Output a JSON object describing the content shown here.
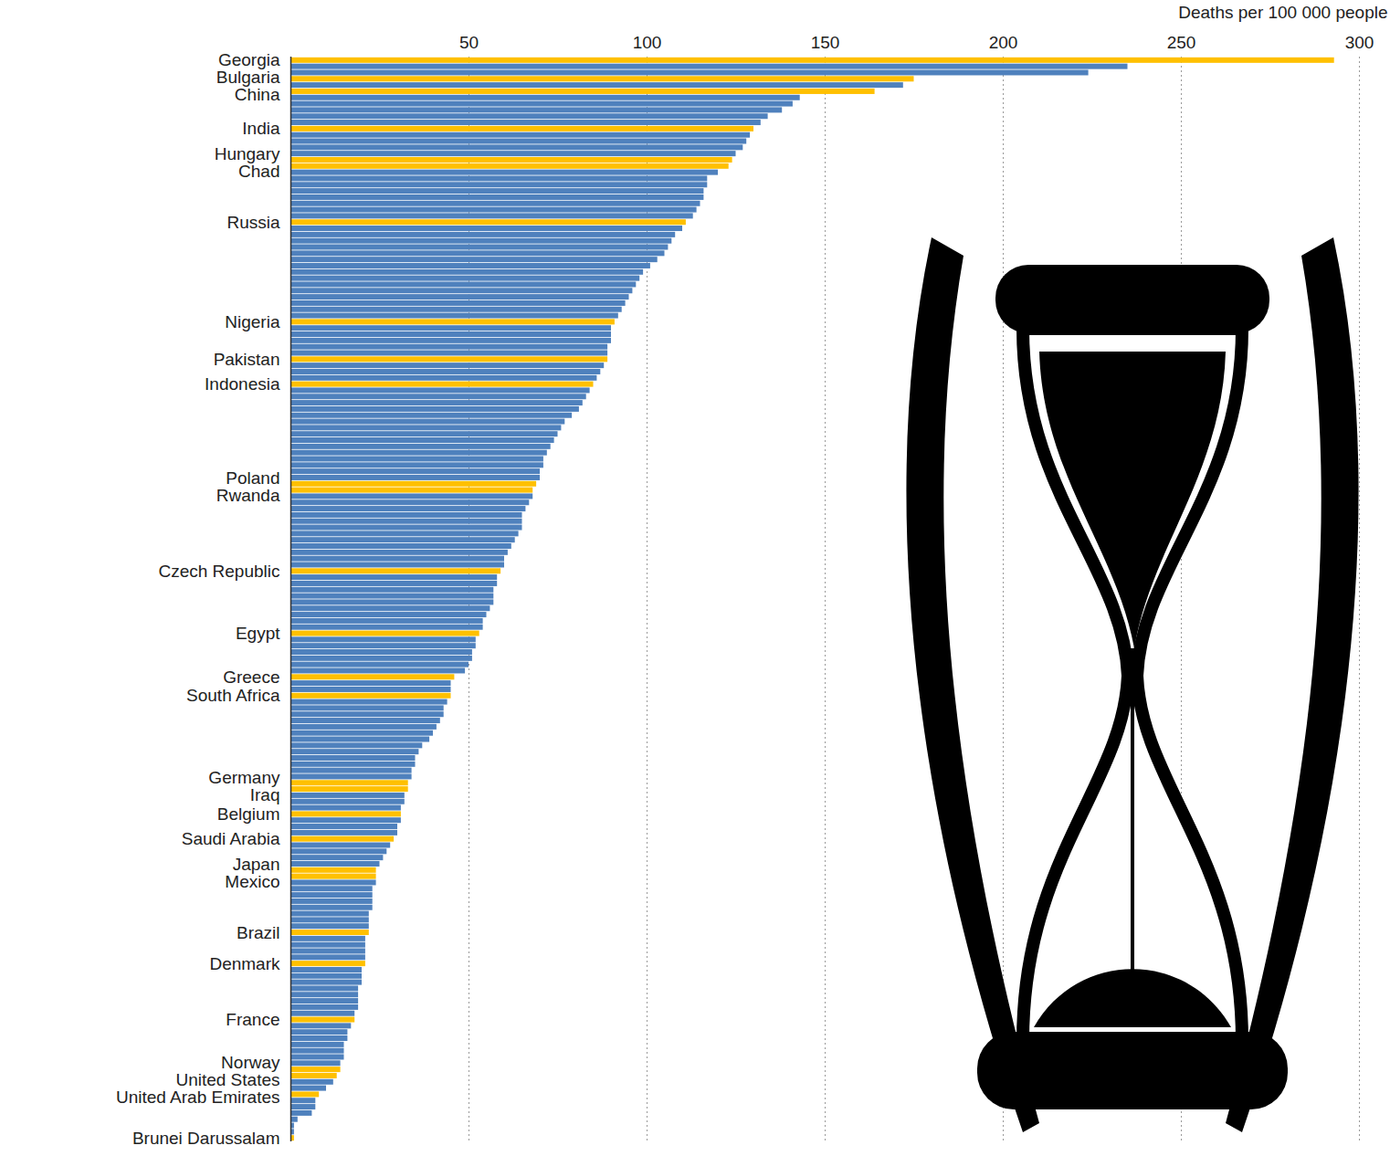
{
  "chart_data": {
    "type": "bar",
    "orientation": "horizontal",
    "xlabel": "Deaths per 100 000 people",
    "xlim": [
      0,
      300
    ],
    "xticks": [
      50,
      100,
      150,
      200,
      250,
      300
    ],
    "grid": true,
    "categories": [
      "Georgia",
      null,
      null,
      "Bulgaria",
      null,
      "China",
      null,
      null,
      null,
      null,
      null,
      "India",
      null,
      null,
      null,
      null,
      "Hungary",
      "Chad",
      null,
      null,
      null,
      null,
      null,
      null,
      null,
      null,
      "Russia",
      null,
      null,
      null,
      null,
      null,
      null,
      null,
      null,
      null,
      null,
      null,
      null,
      null,
      null,
      null,
      "Nigeria",
      null,
      null,
      null,
      null,
      null,
      "Pakistan",
      null,
      null,
      null,
      "Indonesia",
      null,
      null,
      null,
      null,
      null,
      null,
      null,
      null,
      null,
      null,
      null,
      null,
      null,
      null,
      null,
      "Poland",
      "Rwanda",
      null,
      null,
      null,
      null,
      null,
      null,
      null,
      null,
      null,
      null,
      null,
      null,
      "Czech Republic",
      null,
      null,
      null,
      null,
      null,
      null,
      null,
      null,
      null,
      "Egypt",
      null,
      null,
      null,
      null,
      null,
      null,
      "Greece",
      null,
      null,
      "South Africa",
      null,
      null,
      null,
      null,
      null,
      null,
      null,
      null,
      null,
      null,
      null,
      null,
      null,
      "Germany",
      "Iraq",
      null,
      null,
      null,
      "Belgium",
      null,
      null,
      null,
      "Saudi Arabia",
      null,
      null,
      null,
      null,
      "Japan",
      "Mexico",
      null,
      null,
      null,
      null,
      null,
      null,
      null,
      null,
      "Brazil",
      null,
      null,
      null,
      null,
      "Denmark",
      null,
      null,
      null,
      null,
      null,
      null,
      null,
      null,
      "France",
      null,
      null,
      null,
      null,
      null,
      null,
      null,
      "Norway",
      "United States",
      null,
      null,
      "United Arab Emirates",
      null,
      null,
      null,
      null,
      null,
      null,
      "Brunei Darussalam"
    ],
    "values": [
      293,
      235,
      224,
      175,
      172,
      164,
      143,
      141,
      138,
      134,
      132,
      130,
      129,
      128,
      127,
      125,
      124,
      123,
      120,
      117,
      117,
      116,
      116,
      115,
      114,
      113,
      111,
      110,
      108,
      107,
      106,
      105,
      103,
      101,
      99,
      98,
      97,
      96,
      95,
      94,
      93,
      92,
      91,
      90,
      90,
      90,
      89,
      89,
      89,
      88,
      87,
      86,
      85,
      84,
      83,
      82,
      81,
      79,
      77,
      76,
      75,
      74,
      73,
      72,
      71,
      71,
      70,
      70,
      69,
      68,
      68,
      67,
      66,
      65,
      65,
      65,
      64,
      63,
      62,
      61,
      60,
      60,
      59,
      58,
      58,
      57,
      57,
      57,
      56,
      55,
      54,
      54,
      53,
      52,
      52,
      51,
      51,
      50,
      49,
      46,
      45,
      45,
      45,
      44,
      43,
      43,
      42,
      41,
      40,
      39,
      37,
      36,
      35,
      35,
      34,
      34,
      33,
      33,
      32,
      32,
      31,
      31,
      31,
      30,
      30,
      29,
      28,
      27,
      26,
      25,
      24,
      24,
      24,
      23,
      23,
      23,
      23,
      22,
      22,
      22,
      22,
      21,
      21,
      21,
      21,
      21,
      20,
      20,
      20,
      19,
      19,
      19,
      19,
      18,
      18,
      17,
      16,
      16,
      15,
      15,
      15,
      14,
      14,
      13,
      12,
      10,
      8,
      7,
      7,
      6,
      2,
      1,
      1,
      1
    ],
    "colors": [
      "#ffc000",
      "#4f81bd",
      "#4f81bd",
      "#ffc000",
      "#4f81bd",
      "#ffc000",
      "#4f81bd",
      "#4f81bd",
      "#4f81bd",
      "#4f81bd",
      "#4f81bd",
      "#ffc000",
      "#4f81bd",
      "#4f81bd",
      "#4f81bd",
      "#4f81bd",
      "#ffc000",
      "#ffc000",
      "#4f81bd",
      "#4f81bd",
      "#4f81bd",
      "#4f81bd",
      "#4f81bd",
      "#4f81bd",
      "#4f81bd",
      "#4f81bd",
      "#ffc000",
      "#4f81bd",
      "#4f81bd",
      "#4f81bd",
      "#4f81bd",
      "#4f81bd",
      "#4f81bd",
      "#4f81bd",
      "#4f81bd",
      "#4f81bd",
      "#4f81bd",
      "#4f81bd",
      "#4f81bd",
      "#4f81bd",
      "#4f81bd",
      "#4f81bd",
      "#ffc000",
      "#4f81bd",
      "#4f81bd",
      "#4f81bd",
      "#4f81bd",
      "#4f81bd",
      "#ffc000",
      "#4f81bd",
      "#4f81bd",
      "#4f81bd",
      "#ffc000",
      "#4f81bd",
      "#4f81bd",
      "#4f81bd",
      "#4f81bd",
      "#4f81bd",
      "#4f81bd",
      "#4f81bd",
      "#4f81bd",
      "#4f81bd",
      "#4f81bd",
      "#4f81bd",
      "#4f81bd",
      "#4f81bd",
      "#4f81bd",
      "#4f81bd",
      "#ffc000",
      "#ffc000",
      "#4f81bd",
      "#4f81bd",
      "#4f81bd",
      "#4f81bd",
      "#4f81bd",
      "#4f81bd",
      "#4f81bd",
      "#4f81bd",
      "#4f81bd",
      "#4f81bd",
      "#4f81bd",
      "#4f81bd",
      "#ffc000",
      "#4f81bd",
      "#4f81bd",
      "#4f81bd",
      "#4f81bd",
      "#4f81bd",
      "#4f81bd",
      "#4f81bd",
      "#4f81bd",
      "#4f81bd",
      "#ffc000",
      "#4f81bd",
      "#4f81bd",
      "#4f81bd",
      "#4f81bd",
      "#4f81bd",
      "#4f81bd",
      "#ffc000",
      "#4f81bd",
      "#4f81bd",
      "#ffc000",
      "#4f81bd",
      "#4f81bd",
      "#4f81bd",
      "#4f81bd",
      "#4f81bd",
      "#4f81bd",
      "#4f81bd",
      "#4f81bd",
      "#4f81bd",
      "#4f81bd",
      "#4f81bd",
      "#4f81bd",
      "#4f81bd",
      "#ffc000",
      "#ffc000",
      "#4f81bd",
      "#4f81bd",
      "#4f81bd",
      "#ffc000",
      "#4f81bd",
      "#4f81bd",
      "#4f81bd",
      "#ffc000",
      "#4f81bd",
      "#4f81bd",
      "#4f81bd",
      "#4f81bd",
      "#ffc000",
      "#ffc000",
      "#4f81bd",
      "#4f81bd",
      "#4f81bd",
      "#4f81bd",
      "#4f81bd",
      "#4f81bd",
      "#4f81bd",
      "#4f81bd",
      "#ffc000",
      "#4f81bd",
      "#4f81bd",
      "#4f81bd",
      "#4f81bd",
      "#ffc000",
      "#4f81bd",
      "#4f81bd",
      "#4f81bd",
      "#4f81bd",
      "#4f81bd",
      "#4f81bd",
      "#4f81bd",
      "#4f81bd",
      "#ffc000",
      "#4f81bd",
      "#4f81bd",
      "#4f81bd",
      "#4f81bd",
      "#4f81bd",
      "#4f81bd",
      "#4f81bd",
      "#ffc000",
      "#ffc000",
      "#4f81bd",
      "#4f81bd",
      "#ffc000",
      "#4f81bd",
      "#4f81bd",
      "#4f81bd",
      "#4f81bd",
      "#4f81bd",
      "#4f81bd",
      "#ffc000"
    ]
  }
}
